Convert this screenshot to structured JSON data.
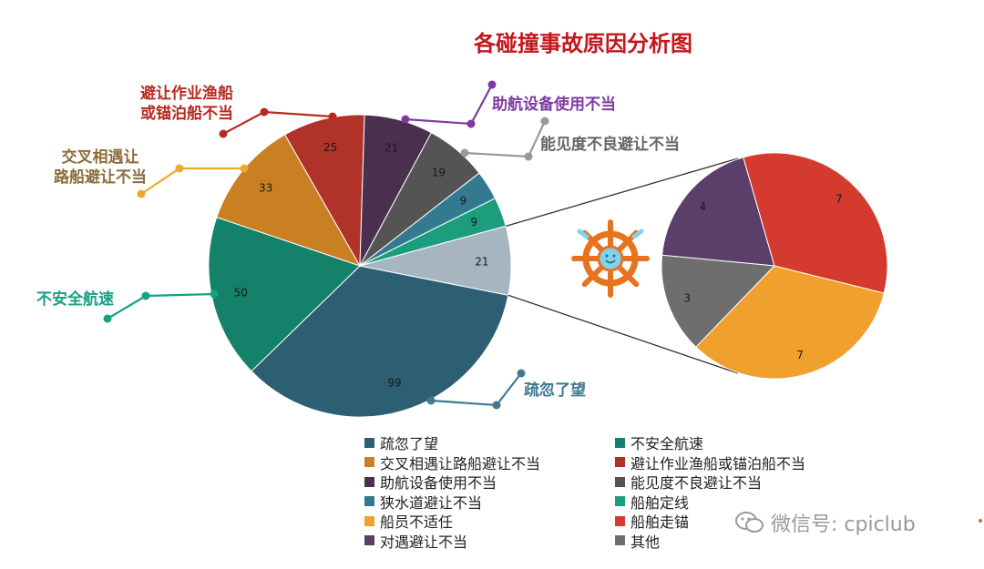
{
  "title": "各碰撞事故原因分析图",
  "chart_data": [
    {
      "type": "pie",
      "title": "各碰撞事故原因分析图",
      "slices": [
        {
          "label": "疏忽了望",
          "value": 99,
          "color": "#2d5f73"
        },
        {
          "label": "不安全航速",
          "value": 50,
          "color": "#14816a"
        },
        {
          "label": "交叉相遇让路船避让不当",
          "value": 33,
          "color": "#c98023"
        },
        {
          "label": "避让作业渔船或锚泊船不当",
          "value": 25,
          "color": "#b03228"
        },
        {
          "label": "助航设备使用不当",
          "value": 21,
          "color": "#4b2f4f"
        },
        {
          "label": "能见度不良避让不当",
          "value": 19,
          "color": "#545454"
        },
        {
          "label": "狭水道避让不当",
          "value": 9,
          "color": "#337a91"
        },
        {
          "label": "船舶定线",
          "value": 9,
          "color": "#1c9d7e"
        },
        {
          "label": "其他",
          "value": 21,
          "color": "#a6b5bf"
        }
      ],
      "callouts": [
        {
          "label": "疏忽了望",
          "color": "#3f7a91"
        },
        {
          "label": "不安全航速",
          "color": "#17a085"
        },
        {
          "label": "交叉相遇让\n路船避让不当",
          "color": "#8c6d3a",
          "line_color": "#f0a830"
        },
        {
          "label": "避让作业渔船\n或锚泊船不当",
          "color": "#b82a20"
        },
        {
          "label": "助航设备使用不当",
          "color": "#7e3aa0"
        },
        {
          "label": "能见度不良避让不当",
          "color": "#666666",
          "line_color": "#999999"
        }
      ]
    },
    {
      "type": "pie",
      "title": "",
      "breakdown_of": "其他",
      "slices": [
        {
          "label": "对遇避让不当",
          "value": 4,
          "color": "#5b3f6b"
        },
        {
          "label": "其他",
          "value": 3,
          "color": "#6e6e6e"
        },
        {
          "label": "船员不适任",
          "value": 7,
          "color": "#f0a02c"
        },
        {
          "label": "船舶走锚",
          "value": 7,
          "color": "#d43b2e"
        }
      ]
    }
  ],
  "legend": [
    {
      "label": "疏忽了望",
      "color": "#2d5f73"
    },
    {
      "label": "不安全航速",
      "color": "#14816a"
    },
    {
      "label": "交叉相遇让路船避让不当",
      "color": "#c98023"
    },
    {
      "label": "避让作业渔船或锚泊船不当",
      "color": "#b03228"
    },
    {
      "label": "助航设备使用不当",
      "color": "#4b2f4f"
    },
    {
      "label": "能见度不良避让不当",
      "color": "#545454"
    },
    {
      "label": "狭水道避让不当",
      "color": "#337a91"
    },
    {
      "label": "船舶定线",
      "color": "#1c9d7e"
    },
    {
      "label": "船员不适任",
      "color": "#f0a02c"
    },
    {
      "label": "船舶走锚",
      "color": "#d43b2e"
    },
    {
      "label": "对遇避让不当",
      "color": "#5b3f6b"
    },
    {
      "label": "其他",
      "color": "#6e6e6e"
    }
  ],
  "watermark": "微信号: cpiclub",
  "icons": {
    "ship_wheel": "ship-wheel-icon",
    "wechat": "wechat-icon"
  }
}
